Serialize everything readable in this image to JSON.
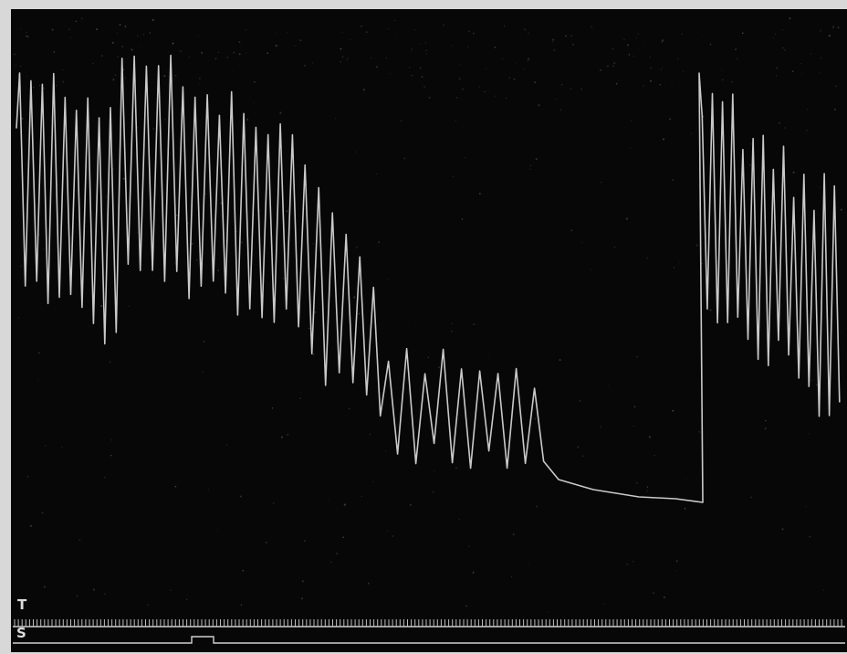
{
  "labels": {
    "time_channel": "T",
    "stimulus_channel": "S"
  },
  "colors": {
    "plate_background": "#070707",
    "plate_border": "#d8d8d8",
    "trace": "#c9c9c9",
    "signal_lines": "#cfcfcf"
  },
  "stimulus": {
    "pulse_count": 1
  }
}
